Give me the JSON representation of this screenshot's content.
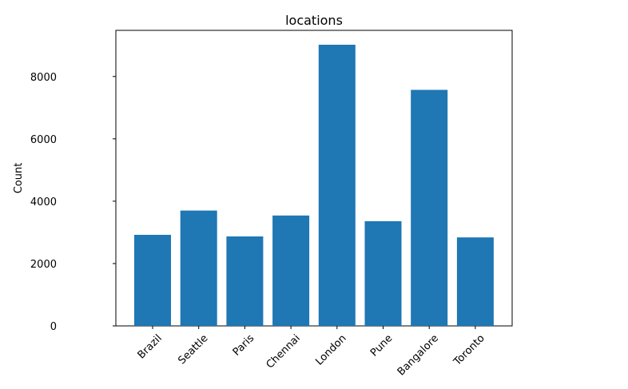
{
  "chart_data": {
    "type": "bar",
    "title": "locations",
    "xlabel": "",
    "ylabel": "Count",
    "categories": [
      "Brazil",
      "Seattle",
      "Paris",
      "Chennai",
      "London",
      "Pune",
      "Bangalore",
      "Toronto"
    ],
    "values": [
      2920,
      3700,
      2870,
      3540,
      9020,
      3360,
      7570,
      2840
    ],
    "ylim": [
      0,
      9480
    ],
    "yticks": [
      0,
      2000,
      4000,
      6000,
      8000
    ],
    "ytick_labels": [
      "0",
      "2000",
      "4000",
      "6000",
      "8000"
    ],
    "bar_color": "#1f77b4",
    "grid": false,
    "legend": "none"
  }
}
